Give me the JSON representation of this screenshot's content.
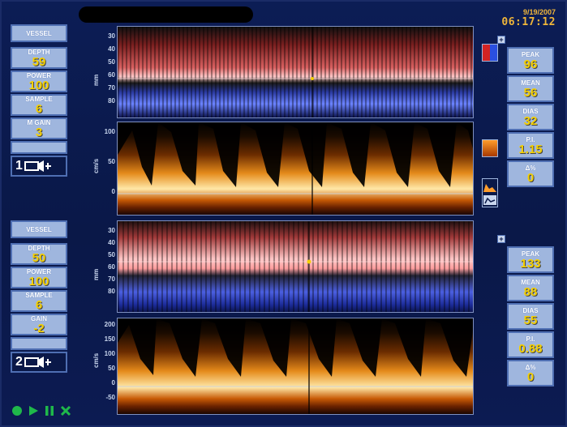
{
  "header": {
    "date": "9/19/2007",
    "time": "06:17:12"
  },
  "probe1": {
    "title": "VESSEL",
    "fields": [
      {
        "label": "DEPTH",
        "value": "59"
      },
      {
        "label": "POWER",
        "value": "100"
      },
      {
        "label": "SAMPLE",
        "value": "6"
      },
      {
        "label": "M GAIN",
        "value": "3"
      }
    ],
    "channel": "1"
  },
  "probe2": {
    "title": "VESSEL",
    "fields": [
      {
        "label": "DEPTH",
        "value": "50"
      },
      {
        "label": "POWER",
        "value": "100"
      },
      {
        "label": "SAMPLE",
        "value": "6"
      },
      {
        "label": "GAIN",
        "value": "-2"
      }
    ],
    "channel": "2"
  },
  "stats1": [
    {
      "label": "PEAK",
      "value": "96"
    },
    {
      "label": "MEAN",
      "value": "56"
    },
    {
      "label": "DIAS",
      "value": "32"
    },
    {
      "label": "P.I.",
      "value": "1.15"
    },
    {
      "label": "Δ%",
      "value": "0"
    }
  ],
  "stats2": [
    {
      "label": "PEAK",
      "value": "133"
    },
    {
      "label": "MEAN",
      "value": "88"
    },
    {
      "label": "DIAS",
      "value": "55"
    },
    {
      "label": "P.I.",
      "value": "0.88"
    },
    {
      "label": "Δ%",
      "value": "0"
    }
  ],
  "axes": {
    "mm_unit": "mm",
    "cms_unit": "cm/s",
    "mm1_ticks": [
      "30",
      "40",
      "50",
      "60",
      "70",
      "80"
    ],
    "vel1_ticks": [
      "100",
      "50",
      "0"
    ],
    "mm2_ticks": [
      "30",
      "40",
      "50",
      "60",
      "70",
      "80"
    ],
    "vel2_ticks": [
      "200",
      "150",
      "100",
      "50",
      "0",
      "-50"
    ]
  },
  "icons": {
    "play": "play-icon",
    "pause": "pause-icon",
    "record": "record-icon",
    "clear": "clear-icon"
  },
  "colors": {
    "value_yellow": "#f5d000",
    "panel_blue": "#9fb6de",
    "clock_orange": "#f0b63a"
  }
}
